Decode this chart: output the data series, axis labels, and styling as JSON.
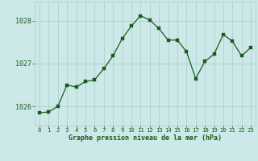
{
  "x": [
    0,
    1,
    2,
    3,
    4,
    5,
    6,
    7,
    8,
    9,
    10,
    11,
    12,
    13,
    14,
    15,
    16,
    17,
    18,
    19,
    20,
    21,
    22,
    23
  ],
  "y": [
    1025.85,
    1025.87,
    1026.0,
    1026.5,
    1026.45,
    1026.58,
    1026.62,
    1026.88,
    1027.18,
    1027.58,
    1027.88,
    1028.12,
    1028.02,
    1027.82,
    1027.55,
    1027.55,
    1027.28,
    1026.65,
    1027.05,
    1027.22,
    1027.68,
    1027.52,
    1027.18,
    1027.38
  ],
  "line_color": "#1a5c1a",
  "marker_color": "#1a5c1a",
  "bg_color": "#cce8e8",
  "grid_color": "#aacccc",
  "xlabel": "Graphe pression niveau de la mer (hPa)",
  "xlabel_color": "#1a5c1a",
  "tick_color": "#1a5c1a",
  "ylim_bottom": 1025.55,
  "ylim_top": 1028.45,
  "yticks": [
    1026,
    1027,
    1028
  ],
  "xticks": [
    0,
    1,
    2,
    3,
    4,
    5,
    6,
    7,
    8,
    9,
    10,
    11,
    12,
    13,
    14,
    15,
    16,
    17,
    18,
    19,
    20,
    21,
    22,
    23
  ],
  "xlabel_fontsize": 6.0,
  "xlabel_fontweight": "bold",
  "ytick_fontsize": 6.0,
  "xtick_fontsize": 5.2,
  "linewidth": 0.9,
  "markersize": 2.2
}
